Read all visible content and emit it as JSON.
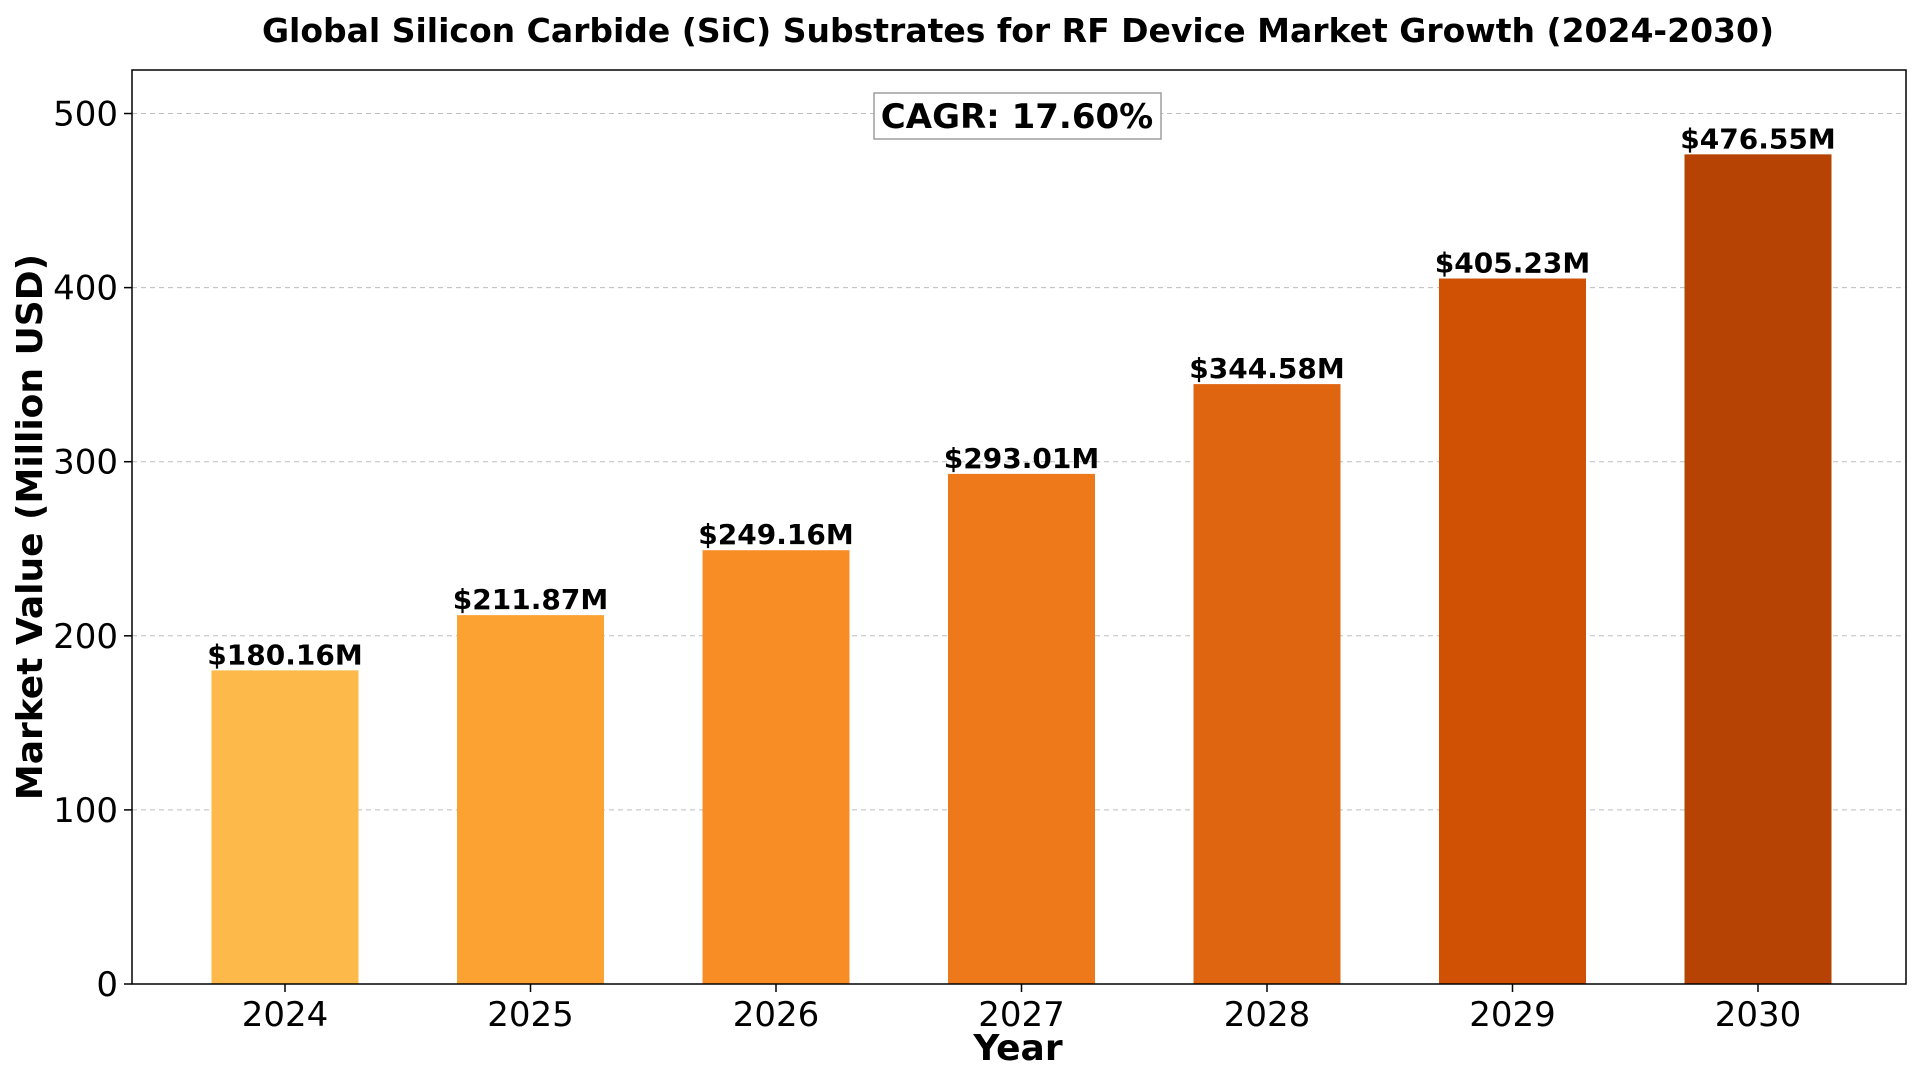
{
  "chart_data": {
    "type": "bar",
    "title": "Global Silicon Carbide (SiC) Substrates for RF Device Market Growth (2024-2030)",
    "xlabel": "Year",
    "ylabel": "Market Value (Million USD)",
    "categories": [
      "2024",
      "2025",
      "2026",
      "2027",
      "2028",
      "2029",
      "2030"
    ],
    "values": [
      180.16,
      211.87,
      249.16,
      293.01,
      344.58,
      405.23,
      476.55
    ],
    "data_labels": [
      "$180.16M",
      "$211.87M",
      "$249.16M",
      "$293.01M",
      "$344.58M",
      "$405.23M",
      "$476.55M"
    ],
    "bar_colors": [
      "#fdb94a",
      "#fca233",
      "#f78d24",
      "#ee791a",
      "#e06511",
      "#d05004",
      "#b64303"
    ],
    "ylim": [
      0,
      525
    ],
    "yticks": [
      0,
      100,
      200,
      300,
      400,
      500
    ],
    "grid": "y-dashed",
    "annotation": "CAGR: 17.60%"
  }
}
